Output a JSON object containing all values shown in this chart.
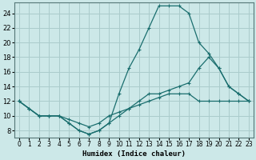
{
  "xlabel": "Humidex (Indice chaleur)",
  "bg_color": "#cce8e8",
  "grid_color": "#aacccc",
  "line_color": "#1a6e6e",
  "xlim": [
    -0.5,
    23.5
  ],
  "ylim": [
    7,
    25.5
  ],
  "xticks": [
    0,
    1,
    2,
    3,
    4,
    5,
    6,
    7,
    8,
    9,
    10,
    11,
    12,
    13,
    14,
    15,
    16,
    17,
    18,
    19,
    20,
    21,
    22,
    23
  ],
  "yticks": [
    8,
    10,
    12,
    14,
    16,
    18,
    20,
    22,
    24
  ],
  "line_main_x": [
    0,
    1,
    2,
    3,
    4,
    5,
    6,
    7,
    8,
    9,
    10,
    11,
    12,
    13,
    14,
    15,
    16,
    17,
    18,
    19,
    20,
    21,
    22,
    23
  ],
  "line_main_y": [
    12,
    11,
    10,
    10,
    10,
    9,
    8,
    7.5,
    8,
    9,
    13,
    16.5,
    19,
    22,
    25,
    25,
    25,
    24,
    20,
    18.5,
    16.5,
    14,
    13,
    12
  ],
  "line_upper_x": [
    0,
    1,
    2,
    3,
    4,
    5,
    6,
    7,
    8,
    9,
    10,
    11,
    12,
    13,
    14,
    15,
    16,
    17,
    18,
    19,
    20,
    21,
    22,
    23
  ],
  "line_upper_y": [
    12,
    11,
    10,
    10,
    10,
    9,
    8,
    7.5,
    8,
    9,
    10,
    11,
    12,
    13,
    13,
    13.5,
    14,
    14.5,
    16.5,
    18,
    16.5,
    14,
    13,
    12
  ],
  "line_flat_x": [
    0,
    1,
    2,
    3,
    4,
    5,
    6,
    7,
    8,
    9,
    10,
    11,
    12,
    13,
    14,
    15,
    16,
    17,
    18,
    19,
    20,
    21,
    22,
    23
  ],
  "line_flat_y": [
    12,
    11,
    10,
    10,
    10,
    9.5,
    9,
    8.5,
    9,
    10,
    10.5,
    11,
    11.5,
    12,
    12.5,
    13,
    13,
    13,
    12,
    12,
    12,
    12,
    12,
    12
  ]
}
